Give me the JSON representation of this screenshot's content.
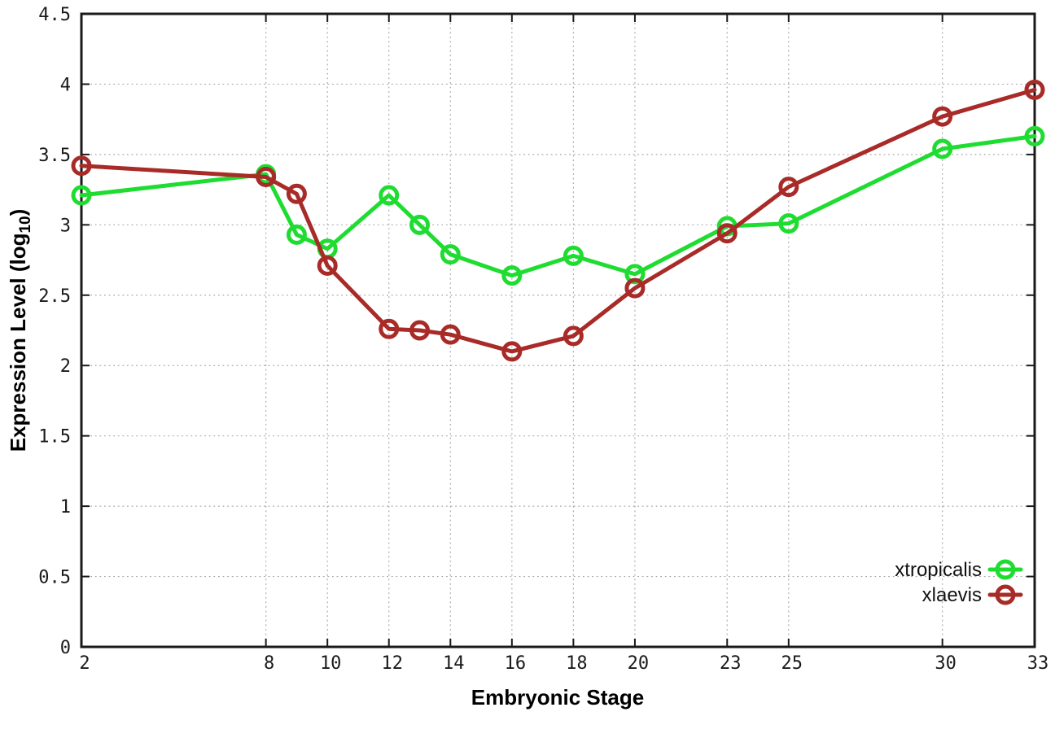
{
  "chart_data": {
    "type": "line",
    "title": "",
    "xlabel": "Embryonic Stage",
    "ylabel": "Expression Level (log10)",
    "ylabel_parts": {
      "prefix": "Expression Level (log",
      "sub": "10",
      "suffix": ")"
    },
    "x": [
      2,
      8,
      9,
      10,
      12,
      13,
      14,
      16,
      18,
      20,
      23,
      25,
      30,
      33
    ],
    "series": [
      {
        "name": "xtropicalis",
        "color": "#1edc30",
        "values": [
          3.21,
          3.36,
          2.93,
          2.83,
          3.21,
          3.0,
          2.79,
          2.64,
          2.78,
          2.65,
          2.99,
          3.01,
          3.54,
          3.63
        ]
      },
      {
        "name": "xlaevis",
        "color": "#a82b28",
        "values": [
          3.42,
          3.34,
          3.22,
          2.71,
          2.26,
          2.25,
          2.22,
          2.1,
          2.21,
          2.55,
          2.94,
          3.27,
          3.77,
          3.96
        ]
      }
    ],
    "xlim": [
      2,
      33
    ],
    "ylim": [
      0,
      4.5
    ],
    "xticks": [
      2,
      8,
      10,
      12,
      14,
      16,
      18,
      20,
      23,
      25,
      30,
      33
    ],
    "xtick_labels": [
      "2",
      "8",
      "10",
      "12",
      "14",
      "16",
      "18",
      "20",
      "23",
      "25",
      "30",
      "33"
    ],
    "yticks": [
      0,
      0.5,
      1,
      1.5,
      2,
      2.5,
      3,
      3.5,
      4,
      4.5
    ],
    "ytick_labels": [
      "0",
      "0.5",
      "1",
      "1.5",
      "2",
      "2.5",
      "3",
      "3.5",
      "4",
      "4.5"
    ],
    "grid": true,
    "legend_position": "bottom-right",
    "axis_color": "#1a1a1a",
    "grid_color": "#a8a8a8",
    "background_color": "#ffffff"
  }
}
